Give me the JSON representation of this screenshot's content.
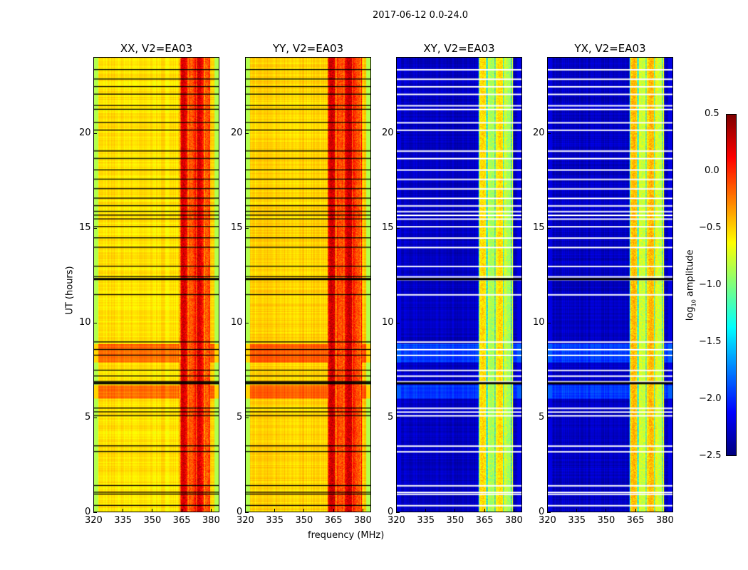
{
  "chart_data": {
    "type": "heatmap",
    "title": "2017-06-12 0.0-24.0",
    "xlabel": "frequency (MHz)",
    "ylabel": "UT (hours)",
    "xlim": [
      320,
      384.4
    ],
    "ylim": [
      0,
      24
    ],
    "xticks": [
      "320",
      "335",
      "350",
      "365",
      "380"
    ],
    "yticks": [
      "0",
      "5",
      "10",
      "15",
      "20"
    ],
    "colorbar": {
      "label_main": "log",
      "label_sub": "10",
      "label_rest": " amplitude",
      "colormap": "jet",
      "range": [
        -2.5,
        0.5
      ],
      "ticks": [
        "0.5",
        "0.0",
        "−0.5",
        "−1.0",
        "−1.5",
        "−2.0",
        "−2.5"
      ]
    },
    "panels": [
      {
        "title": "XX, V2=EA03",
        "baseline": -0.55,
        "edge": -0.85,
        "band_mhz": [
          364,
          380
        ],
        "band_level": 0.05,
        "flag_color": "#000000"
      },
      {
        "title": "YY, V2=EA03",
        "baseline": -0.5,
        "edge": -0.85,
        "band_mhz": [
          362,
          380
        ],
        "band_level": 0.08,
        "flag_color": "#000000"
      },
      {
        "title": "XY, V2=EA03",
        "baseline": -2.3,
        "edge": -2.2,
        "band_mhz": [
          362,
          380
        ],
        "band_level": -0.7,
        "flag_color": "#ffffff"
      },
      {
        "title": "YX, V2=EA03",
        "baseline": -2.3,
        "edge": -2.2,
        "band_mhz": [
          362,
          380
        ],
        "band_level": -0.6,
        "flag_color": "#ffffff"
      }
    ],
    "flagged_hours": [
      0.35,
      0.95,
      1.05,
      1.4,
      3.2,
      3.5,
      5.1,
      5.3,
      5.5,
      6.9,
      7.2,
      7.5,
      8.3,
      8.6,
      9.0,
      11.5,
      12.3,
      12.45,
      13.0,
      14.0,
      14.5,
      15.1,
      15.5,
      15.7,
      15.9,
      16.2,
      16.6,
      17.1,
      17.6,
      18.1,
      18.7,
      19.1,
      20.2,
      20.6,
      21.3,
      21.5,
      22.1,
      22.5,
      22.9,
      23.4
    ],
    "bright_hours": [
      [
        6.0,
        6.7
      ],
      [
        7.9,
        8.9
      ]
    ]
  }
}
